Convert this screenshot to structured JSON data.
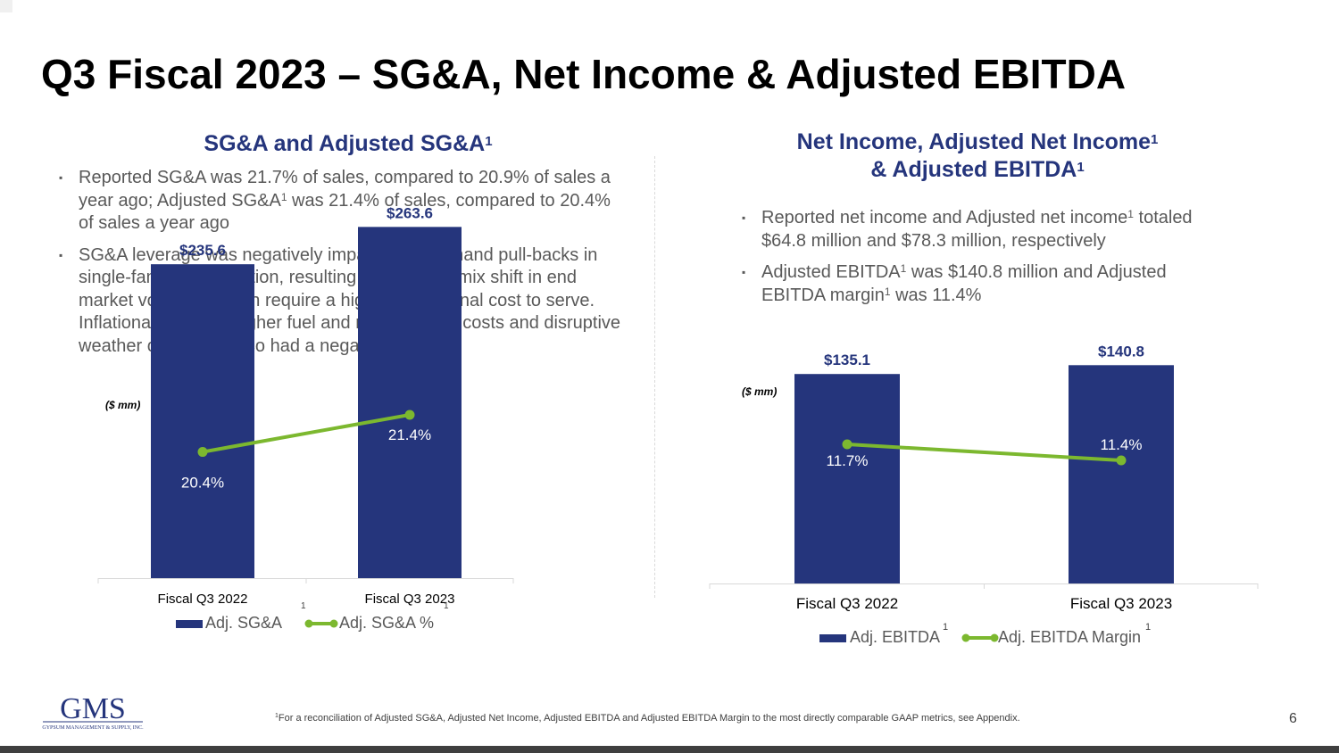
{
  "slide": {
    "title": "Q3 Fiscal 2023 – SG&A, Net Income & Adjusted EBITDA",
    "page_number": "6",
    "footnote_mark": "1",
    "footnote_text": "For a reconciliation of Adjusted SG&A, Adjusted Net Income, Adjusted EBITDA and Adjusted EBITDA Margin to the most directly comparable GAAP metrics, see Appendix.",
    "logo_text": "GMS",
    "logo_subtext": "GYPSUM MANAGEMENT & SUPPLY, INC."
  },
  "left": {
    "heading": "SG&A and Adjusted SG&A",
    "heading_sup": "1",
    "bullet1_part1": "Reported SG&A was 21.7% of sales, compared to 20.9% of sales a year ago;   Adjusted SG&A",
    "bullet1_sup": "1",
    "bullet1_part2": " was 21.4% of sales, compared to 20.4% of sales a year ago",
    "bullet2": "SG&A leverage was negatively impacted by demand pull-backs in single-family construction, resulting in a relative mix shift in end market volumes, which require a higher operational cost to serve. Inflationary wages, higher fuel and maintenance costs and disruptive weather conditions also had a negative impact."
  },
  "right": {
    "heading_line1": "Net Income, Adjusted Net Income",
    "heading_line1_sup": "1",
    "heading_line2": "& Adjusted EBITDA",
    "heading_line2_sup": "1",
    "bullet1_part1": "Reported net income and Adjusted net income",
    "bullet1_sup": "1",
    "bullet1_part2": " totaled $64.8 million and $78.3 million, respectively",
    "bullet2_part1": "Adjusted EBITDA",
    "bullet2_sup1": "1",
    "bullet2_part2": " was $140.8 million and Adjusted EBITDA margin",
    "bullet2_sup2": "1",
    "bullet2_part3": " was 11.4%"
  },
  "colors": {
    "bar": "#25357c",
    "line": "#7cb82f",
    "label_navy": "#25357c"
  },
  "chart_data": [
    {
      "type": "bar",
      "units_note": "($ mm)",
      "categories": [
        "Fiscal Q3 2022",
        "Fiscal Q3 2023"
      ],
      "category_sup": [
        "1",
        "1"
      ],
      "series": [
        {
          "name": "Adj. SG&A",
          "kind": "bar",
          "values": [
            235.6,
            263.6
          ],
          "labels": [
            "$235.6",
            "$263.6"
          ]
        },
        {
          "name": "Adj. SG&A %",
          "kind": "line",
          "values": [
            20.4,
            21.4
          ],
          "labels": [
            "20.4%",
            "21.4%"
          ]
        }
      ],
      "bar_range": [
        0,
        300
      ],
      "line_range": [
        17,
        22
      ]
    },
    {
      "type": "bar",
      "units_note": "($ mm)",
      "categories": [
        "Fiscal Q3 2022",
        "Fiscal Q3 2023"
      ],
      "series": [
        {
          "name": "Adj. EBITDA",
          "name_sup": "1",
          "kind": "bar",
          "values": [
            135.1,
            140.8
          ],
          "labels": [
            "$135.1",
            "$140.8"
          ]
        },
        {
          "name": "Adj. EBITDA Margin",
          "name_sup": "1",
          "kind": "line",
          "values": [
            11.7,
            11.4
          ],
          "labels": [
            "11.7%",
            "11.4%"
          ]
        }
      ],
      "bar_range": [
        0,
        145
      ],
      "line_range": [
        9,
        13
      ]
    }
  ]
}
